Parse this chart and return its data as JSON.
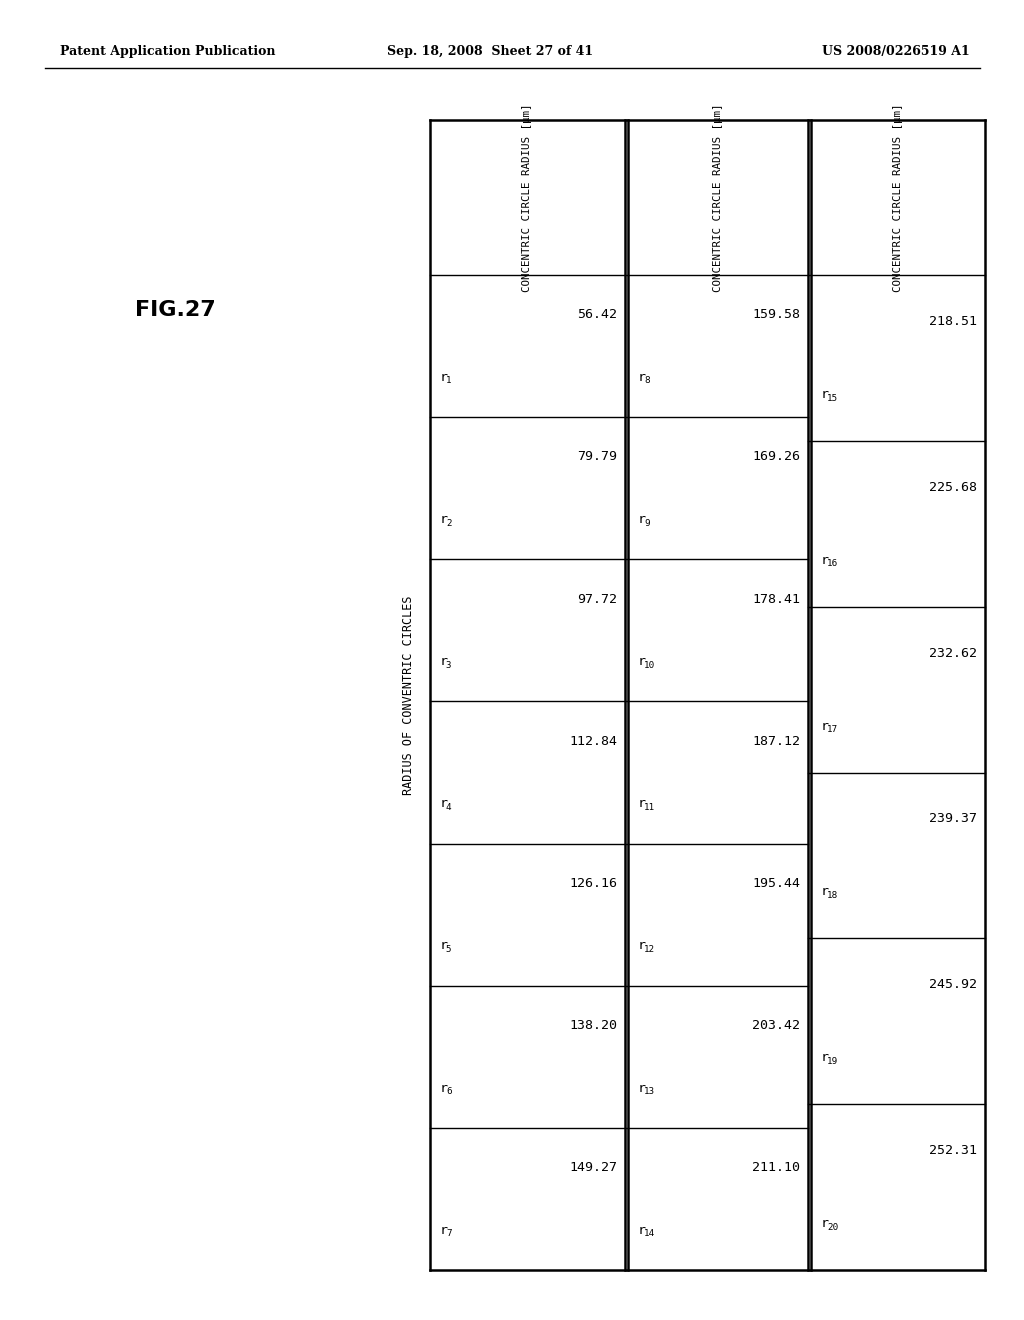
{
  "header_left": "Patent Application Publication",
  "header_center": "Sep. 18, 2008  Sheet 27 of 41",
  "header_right": "US 2008/0226519 A1",
  "fig_label": "FIG.27",
  "table_title": "RADIUS OF CONVENTRIC CIRCLES",
  "col_header": "CONCENTRIC CIRCLE RADIUS [μm]",
  "col1_labels": [
    "r1",
    "r2",
    "r3",
    "r4",
    "r5",
    "r6",
    "r7"
  ],
  "col2_labels": [
    "r8",
    "r9",
    "r10",
    "r11",
    "r12",
    "r13",
    "r14"
  ],
  "col3_labels": [
    "r15",
    "r16",
    "r17",
    "r18",
    "r19",
    "r20"
  ],
  "col1_values": [
    "56.42",
    "79.79",
    "97.72",
    "112.84",
    "126.16",
    "138.20",
    "149.27"
  ],
  "col2_values": [
    "159.58",
    "169.26",
    "178.41",
    "187.12",
    "195.44",
    "203.42",
    "211.10"
  ],
  "col3_values": [
    "218.51",
    "225.68",
    "232.62",
    "239.37",
    "245.92",
    "252.31"
  ],
  "bg_color": "#ffffff",
  "text_color": "#000000"
}
